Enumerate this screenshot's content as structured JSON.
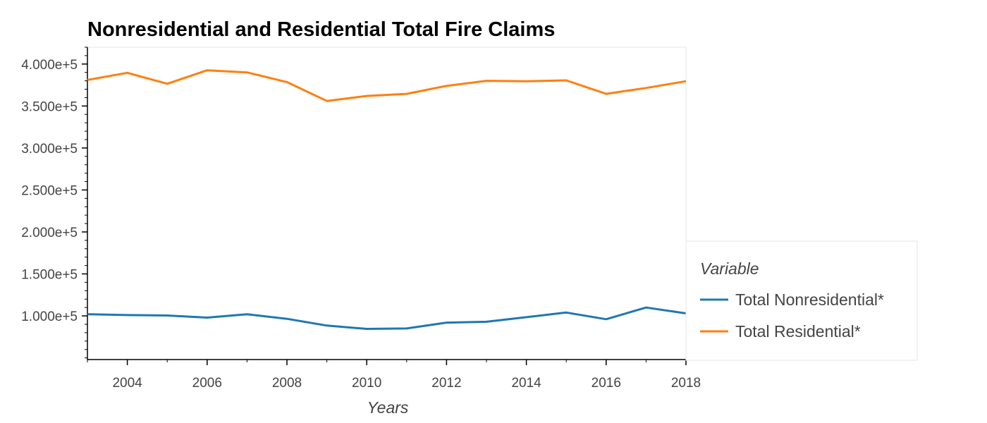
{
  "chart_data": {
    "type": "line",
    "title": "Nonresidential and Residential Total Fire Claims",
    "xlabel": "Years",
    "ylabel": "",
    "xlim": [
      2003,
      2018
    ],
    "ylim": [
      48000,
      420000
    ],
    "x_ticks": [
      2004,
      2006,
      2008,
      2010,
      2012,
      2014,
      2016,
      2018
    ],
    "y_ticks": [
      100000,
      150000,
      200000,
      250000,
      300000,
      350000,
      400000
    ],
    "y_tick_labels": [
      "1.000e+5",
      "1.500e+5",
      "2.000e+5",
      "2.500e+5",
      "3.000e+5",
      "3.500e+5",
      "4.000e+5"
    ],
    "grid": false,
    "legend_title": "Variable",
    "legend_position": "right",
    "x": [
      2003,
      2004,
      2005,
      2006,
      2007,
      2008,
      2009,
      2010,
      2011,
      2012,
      2013,
      2014,
      2015,
      2016,
      2017,
      2018
    ],
    "series": [
      {
        "name": "Total Nonresidential*",
        "color": "#1f77b4",
        "values": [
          102000,
          101000,
          100500,
          98000,
          102000,
          96500,
          88500,
          84500,
          85000,
          92000,
          93000,
          98500,
          104000,
          96000,
          110000,
          103000
        ]
      },
      {
        "name": "Total Residential*",
        "color": "#ff7f0e",
        "values": [
          381000,
          389500,
          376500,
          392500,
          390000,
          378500,
          356000,
          362000,
          364500,
          374000,
          380000,
          379500,
          380500,
          364500,
          371500,
          379500
        ]
      }
    ]
  }
}
